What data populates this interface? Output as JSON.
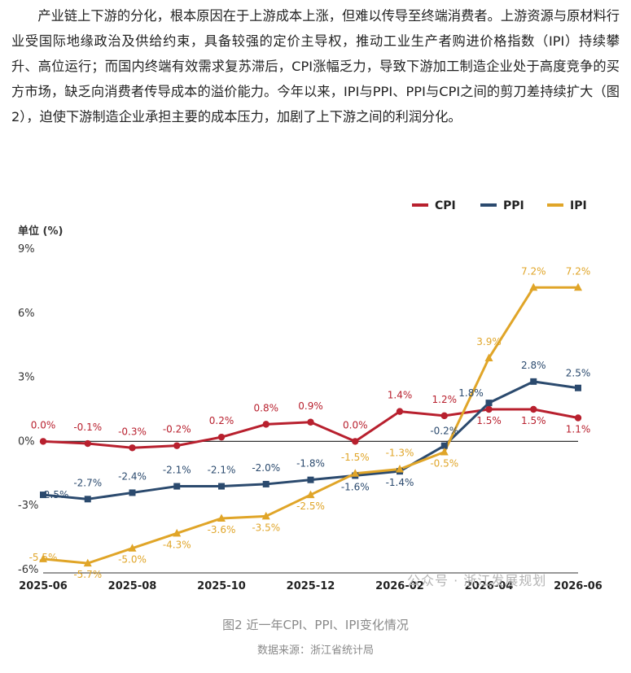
{
  "article": {
    "paragraph": "产业链上下游的分化，根本原因在于上游成本上涨，但难以传导至终端消费者。上游资源与原材料行业受国际地缘政治及供给约束，具备较强的定价主导权，推动工业生产者购进价格指数（IPI）持续攀升、高位运行；而国内终端有效需求复苏滞后，CPI涨幅乏力，导致下游加工制造企业处于高度竞争的买方市场，缺乏向消费者传导成本的溢价能力。今年以来，IPI与PPI、PPI与CPI之间的剪刀差持续扩大（图2），迫使下游制造企业承担主要的成本压力，加剧了上下游之间的利润分化。"
  },
  "chart_data": {
    "type": "line",
    "unit_label": "单位 (%)",
    "x": [
      "2025-06",
      "2025-07",
      "2025-08",
      "2025-09",
      "2025-10",
      "2025-11",
      "2025-12",
      "2026-01",
      "2026-02",
      "2026-03",
      "2026-04",
      "2026-05",
      "2026-06"
    ],
    "x_tick_labels": [
      "2025-06",
      "2025-08",
      "2025-10",
      "2025-12",
      "2026-02",
      "2026-04",
      "2026-06"
    ],
    "y_ticks": [
      "9%",
      "6%",
      "3%",
      "0%",
      "-3%",
      "-6%"
    ],
    "ylim": [
      -6,
      9
    ],
    "legend_position": "top-right",
    "series": [
      {
        "name": "CPI",
        "color": "#b8202e",
        "marker": "circle",
        "values": [
          0.0,
          -0.1,
          -0.3,
          -0.2,
          0.2,
          0.8,
          0.9,
          0.0,
          1.4,
          1.2,
          1.5,
          1.5,
          1.1
        ],
        "labels": [
          "0.0%",
          "-0.1%",
          "-0.3%",
          "-0.2%",
          "0.2%",
          "0.8%",
          "0.9%",
          "0.0%",
          "1.4%",
          "1.2%",
          "1.5%",
          "1.5%",
          "1.1%"
        ]
      },
      {
        "name": "PPI",
        "color": "#2b4a6e",
        "marker": "square",
        "values": [
          -2.5,
          -2.7,
          -2.4,
          -2.1,
          -2.1,
          -2.0,
          -1.8,
          -1.6,
          -1.4,
          -0.2,
          1.8,
          2.8,
          2.5
        ],
        "labels": [
          "-2.5%",
          "-2.7%",
          "-2.4%",
          "-2.1%",
          "-2.1%",
          "-2.0%",
          "-1.8%",
          "-1.6%",
          "-1.4%",
          "-0.2%",
          "1.8%",
          "2.8%",
          "2.5%"
        ]
      },
      {
        "name": "IPI",
        "color": "#e0a528",
        "marker": "triangle",
        "values": [
          -5.5,
          -5.7,
          -5.0,
          -4.3,
          -3.6,
          -3.5,
          -2.5,
          -1.5,
          -1.3,
          -0.5,
          3.9,
          7.2,
          7.2
        ],
        "labels": [
          "-5.5%",
          "-5.7%",
          "-5.0%",
          "-4.3%",
          "-3.6%",
          "-3.5%",
          "-2.5%",
          "-1.5%",
          "-1.3%",
          "-0.5%",
          "3.9%",
          "7.2%",
          "7.2%"
        ]
      }
    ]
  },
  "watermark": "公众号 · 浙江发展规划",
  "caption": "图2 近一年CPI、PPI、IPI变化情况",
  "source": "数据来源：浙江省统计局"
}
